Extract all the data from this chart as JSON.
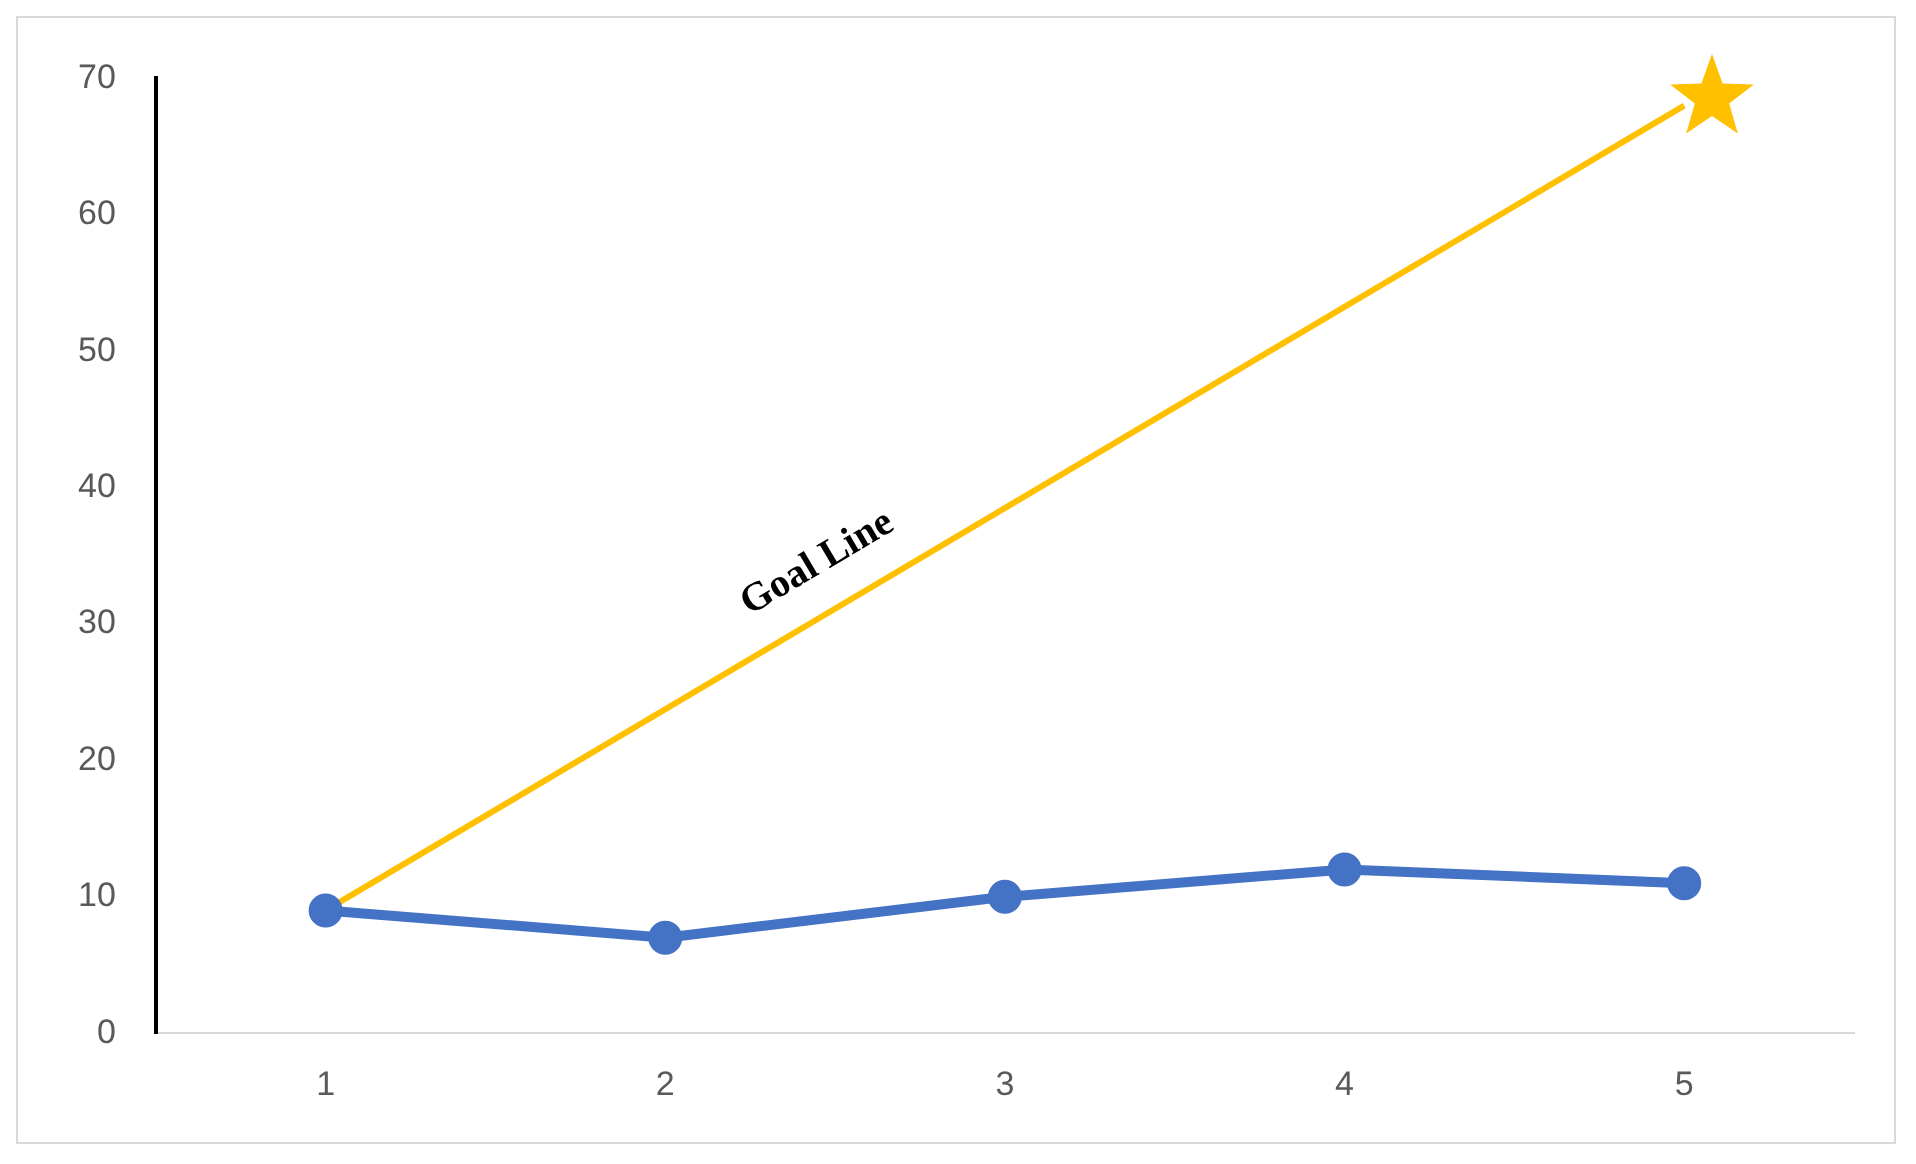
{
  "chart_data": {
    "type": "line",
    "categories": [
      "1",
      "2",
      "3",
      "4",
      "5"
    ],
    "series": [
      {
        "color": "#4472c4",
        "values": [
          9,
          7,
          10,
          12,
          11
        ],
        "marker": "circle"
      },
      {
        "name": "Goal Line",
        "color": "#ffc000",
        "values": [
          9,
          null,
          null,
          null,
          68
        ],
        "marker": "none"
      }
    ],
    "ylim": [
      0,
      70
    ],
    "yticks": [
      0,
      10,
      20,
      30,
      40,
      50,
      60,
      70
    ],
    "grid": false,
    "legend": false
  }
}
